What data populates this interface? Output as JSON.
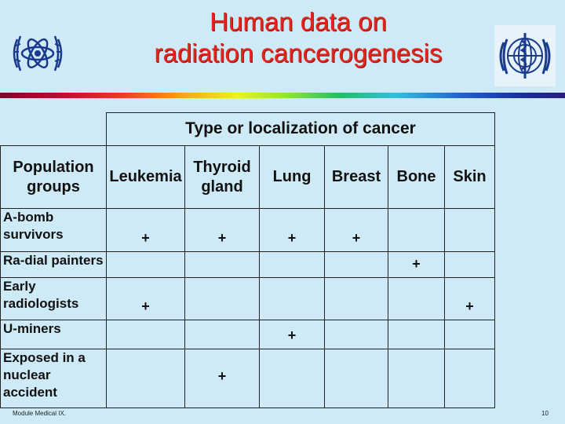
{
  "slide": {
    "title_line1": "Human data on",
    "title_line2": "radiation cancerogenesis",
    "footer_left": "Module Medical IX.",
    "page_number": "10"
  },
  "table": {
    "group_header": "Type or localization of cancer",
    "corner_header": "Population groups",
    "columns": [
      "Leukemia",
      "Thyroid gland",
      "Lung",
      "Breast",
      "Bone",
      "Skin"
    ],
    "rows": [
      {
        "label": "A-bomb survivors",
        "cells": [
          "+",
          "+",
          "+",
          "+",
          "",
          ""
        ]
      },
      {
        "label": "Ra-dial painters",
        "cells": [
          "",
          "",
          "",
          "",
          "+",
          ""
        ]
      },
      {
        "label": "Early radiologists",
        "cells": [
          "+",
          "",
          "",
          "",
          "",
          "+"
        ]
      },
      {
        "label": "U-miners",
        "cells": [
          "",
          "",
          "+",
          "",
          "",
          ""
        ]
      },
      {
        "label": "Exposed in a nuclear accident",
        "cells": [
          "",
          "+",
          "",
          "",
          "",
          ""
        ]
      }
    ]
  },
  "colors": {
    "title": "#e8231c",
    "background": "#cfeaf7",
    "emblem": "#1a3a8c"
  },
  "icons": {
    "left_logo": "iaea-atom-emblem",
    "right_logo": "who-un-emblem"
  }
}
